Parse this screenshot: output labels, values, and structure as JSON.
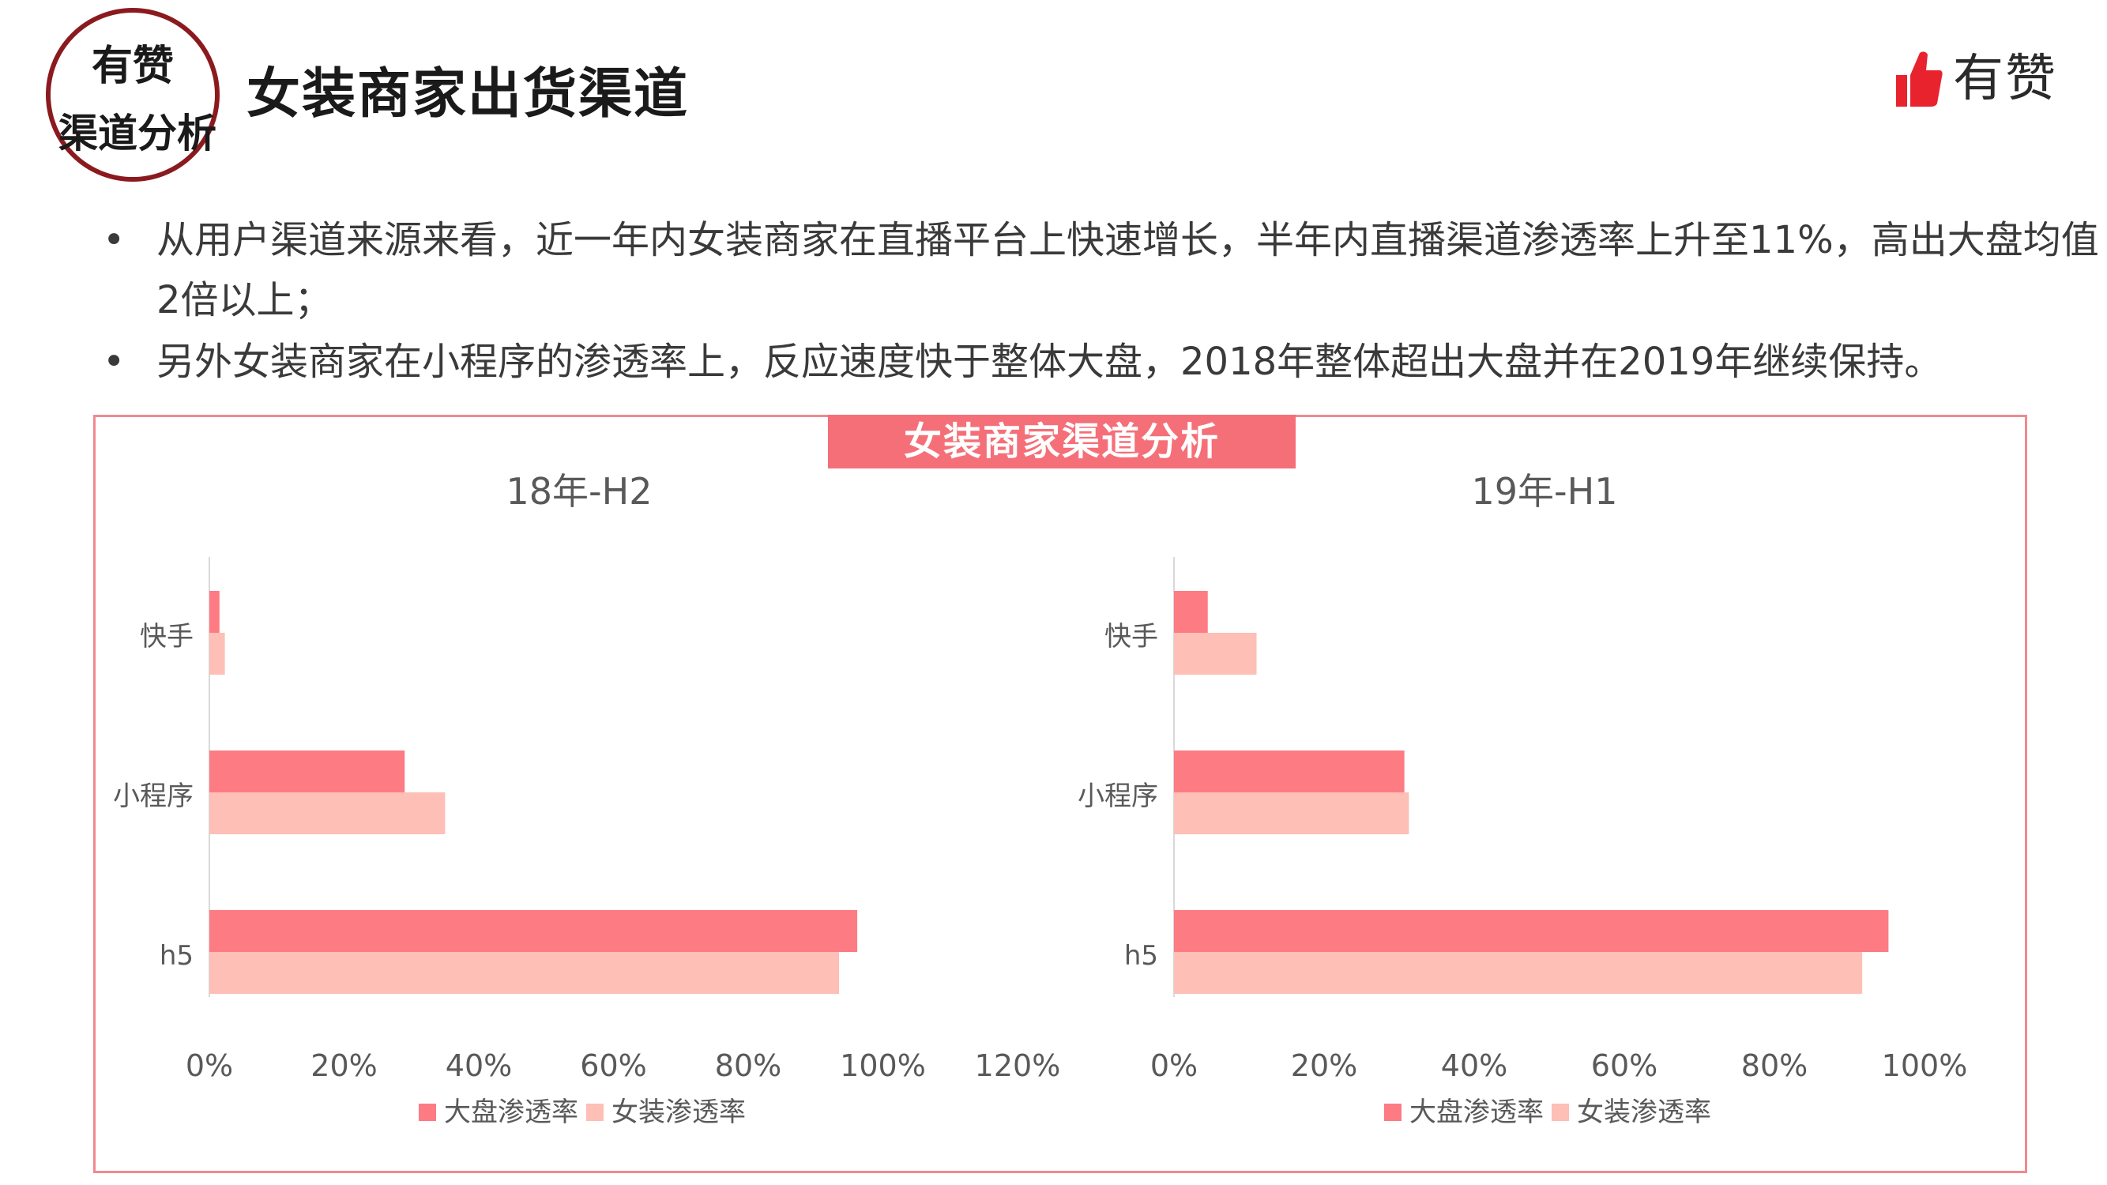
{
  "header": {
    "badge_line1": "有赞",
    "badge_line2": "渠道分析",
    "title": "女装商家出货渠道",
    "logo_text": "有赞"
  },
  "bullets": [
    "从用户渠道来源来看，近一年内女装商家在直播平台上快速增长，半年内直播渠道渗透率上升至11%，高出大盘均值2倍以上；",
    "另外女装商家在小程序的渗透率上，反应速度快于整体大盘，2018年整体超出大盘并在2019年继续保持。"
  ],
  "banner": "女装商家渠道分析",
  "colors": {
    "series_overall": "#fd7b83",
    "series_women": "#fdbfb6",
    "brand_red": "#e8232e",
    "frame": "#f08a8e"
  },
  "chart_data": [
    {
      "type": "bar",
      "orientation": "horizontal",
      "title": "18年-H2",
      "categories": [
        "快手",
        "小程序",
        "h5"
      ],
      "series": [
        {
          "name": "大盘渗透率",
          "values": [
            0.015,
            0.29,
            0.962
          ]
        },
        {
          "name": "女装渗透率",
          "values": [
            0.023,
            0.35,
            0.935
          ]
        }
      ],
      "xlim": [
        0,
        1.2
      ],
      "xticks": [
        "0%",
        "20%",
        "40%",
        "60%",
        "80%",
        "100%",
        "120%"
      ],
      "legend": "bottom-center"
    },
    {
      "type": "bar",
      "orientation": "horizontal",
      "title": "19年-H1",
      "categories": [
        "快手",
        "小程序",
        "h5"
      ],
      "series": [
        {
          "name": "大盘渗透率",
          "values": [
            0.045,
            0.307,
            0.952
          ]
        },
        {
          "name": "女装渗透率",
          "values": [
            0.11,
            0.313,
            0.917
          ]
        }
      ],
      "xlim": [
        0,
        1.0
      ],
      "xticks": [
        "0%",
        "20%",
        "40%",
        "60%",
        "80%",
        "100%"
      ],
      "legend": "bottom-center"
    }
  ]
}
